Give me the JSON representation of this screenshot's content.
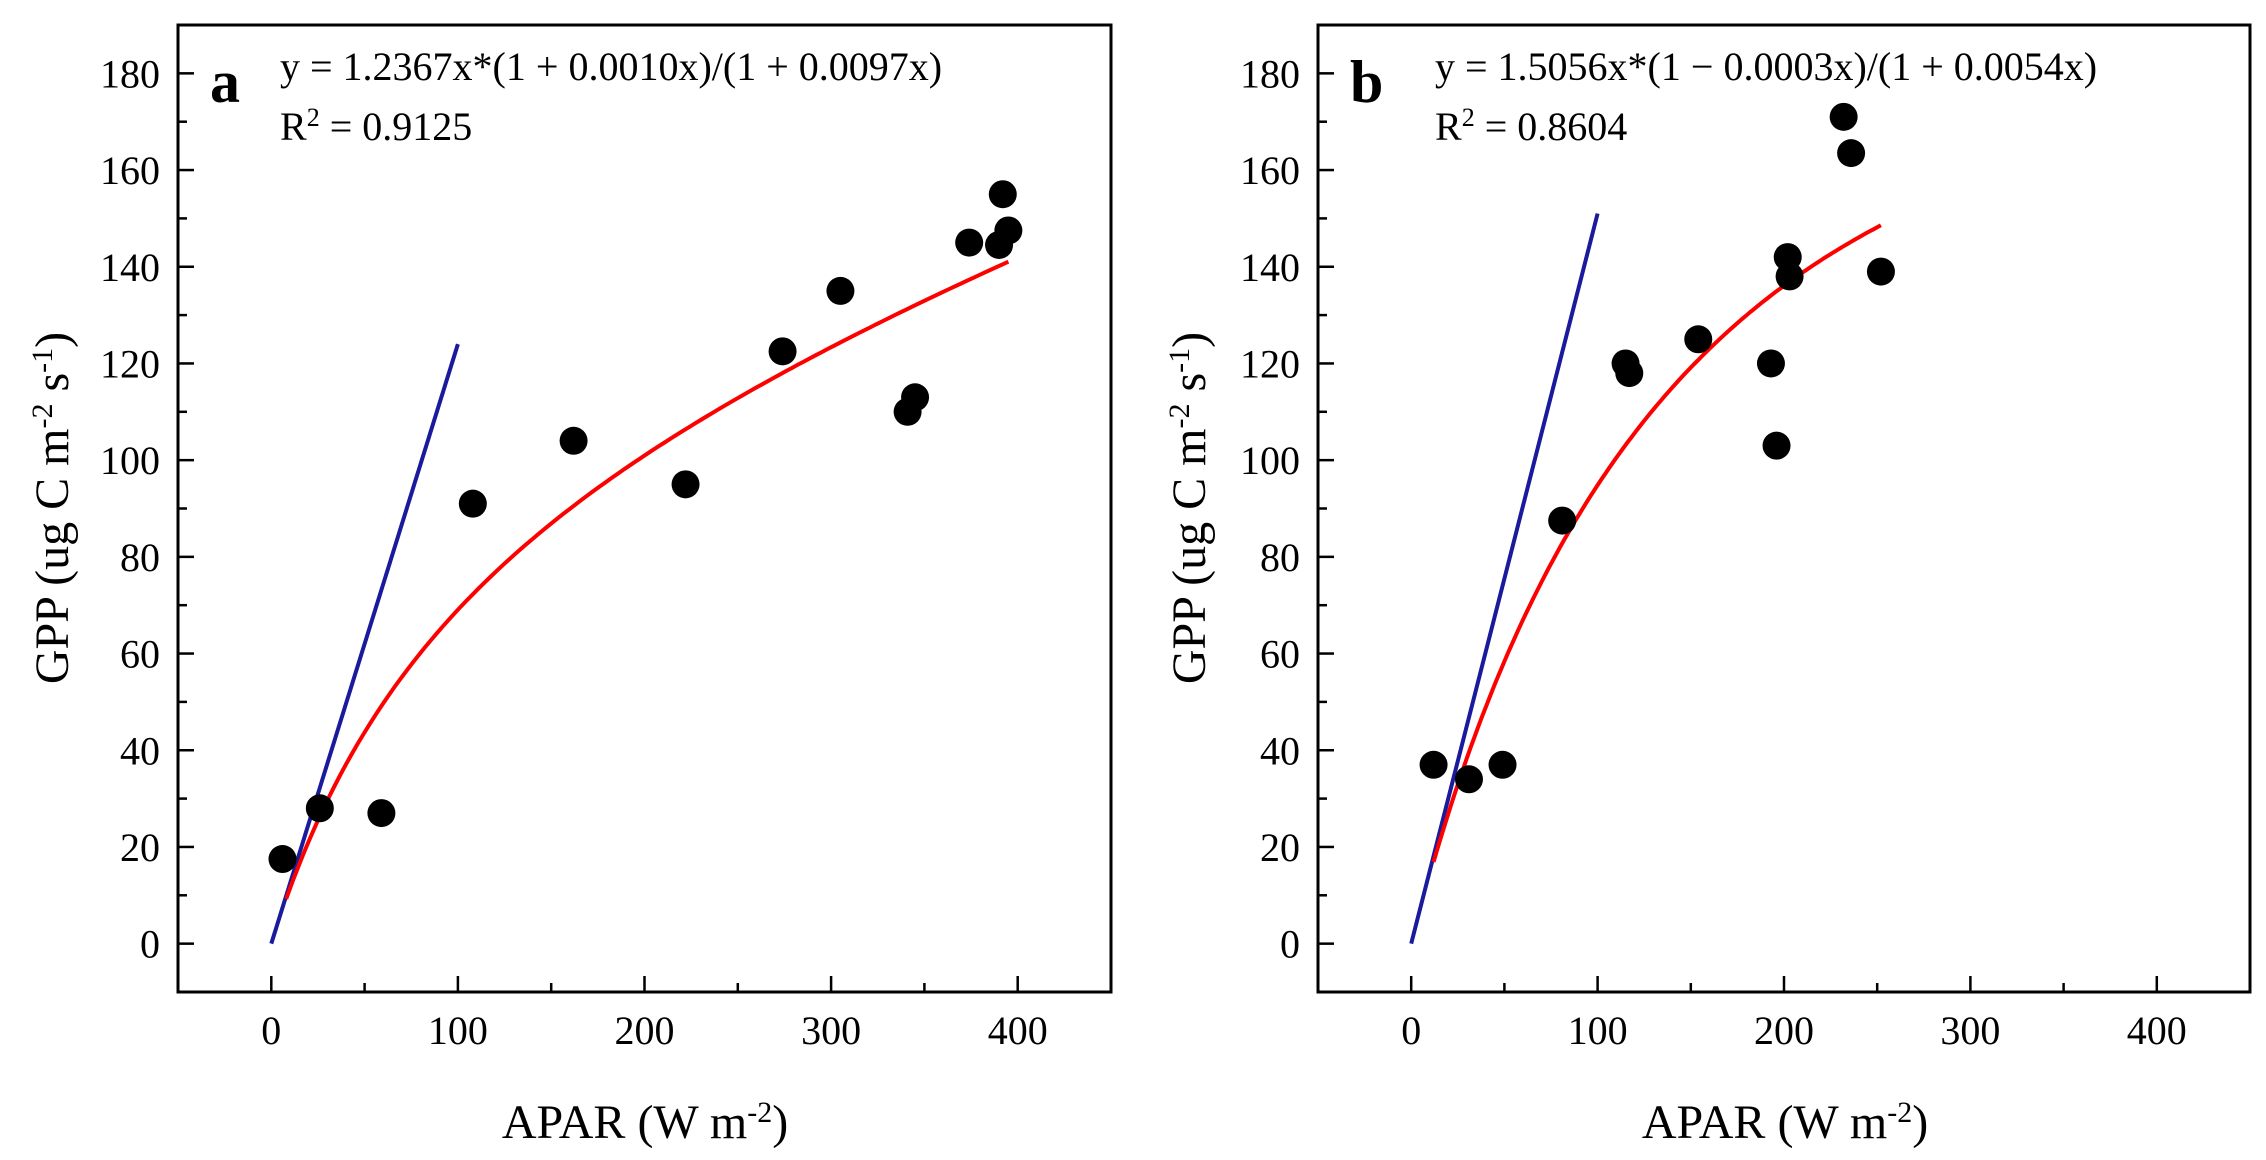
{
  "chart_data": [
    {
      "type": "scatter",
      "panel_label": "a",
      "equation": "y = 1.2367x*(1 + 0.0010x)/(1 + 0.0097x)",
      "r2_prefix": "R",
      "r2_sup": "2",
      "r2_value": " = 0.9125",
      "xlabel_main": "APAR (W m",
      "xlabel_sup": "-2",
      "xlabel_end": ")",
      "ylabel_main": "GPP (ug C m",
      "ylabel_sup1": "-2",
      "ylabel_mid": " s",
      "ylabel_sup2": "-1",
      "ylabel_end": ")",
      "xlim": [
        -50,
        450
      ],
      "ylim": [
        -10,
        190
      ],
      "xticks": [
        0,
        100,
        200,
        300,
        400
      ],
      "yticks": [
        0,
        20,
        40,
        60,
        80,
        100,
        120,
        140,
        160,
        180
      ],
      "points": [
        {
          "x": 6,
          "y": 17.5
        },
        {
          "x": 26,
          "y": 28
        },
        {
          "x": 59,
          "y": 27
        },
        {
          "x": 108,
          "y": 91
        },
        {
          "x": 162,
          "y": 104
        },
        {
          "x": 222,
          "y": 95
        },
        {
          "x": 274,
          "y": 122.5
        },
        {
          "x": 305,
          "y": 135
        },
        {
          "x": 341,
          "y": 110
        },
        {
          "x": 345,
          "y": 113
        },
        {
          "x": 374,
          "y": 145
        },
        {
          "x": 390,
          "y": 144.5
        },
        {
          "x": 392,
          "y": 155
        },
        {
          "x": 395,
          "y": 147.5
        }
      ],
      "fit": {
        "a": 1.2367,
        "b": 0.001,
        "c": 0.0097,
        "x_range": [
          8,
          395
        ],
        "color": "#ff0000"
      },
      "initial_slope_line": {
        "x": [
          0,
          100
        ],
        "y": [
          0,
          124
        ],
        "color": "#1a1a9c"
      }
    },
    {
      "type": "scatter",
      "panel_label": "b",
      "equation": "y = 1.5056x*(1 − 0.0003x)/(1 + 0.0054x)",
      "r2_prefix": "R",
      "r2_sup": "2",
      "r2_value": " = 0.8604",
      "xlabel_main": "APAR (W m",
      "xlabel_sup": "-2",
      "xlabel_end": ")",
      "ylabel_main": "GPP (ug C m",
      "ylabel_sup1": "-2",
      "ylabel_mid": " s",
      "ylabel_sup2": "-1",
      "ylabel_end": ")",
      "xlim": [
        -50,
        450
      ],
      "ylim": [
        -10,
        190
      ],
      "xticks": [
        0,
        100,
        200,
        300,
        400
      ],
      "yticks": [
        0,
        20,
        40,
        60,
        80,
        100,
        120,
        140,
        160,
        180
      ],
      "points": [
        {
          "x": 12,
          "y": 37
        },
        {
          "x": 31,
          "y": 34
        },
        {
          "x": 49,
          "y": 37
        },
        {
          "x": 81,
          "y": 87.5
        },
        {
          "x": 115,
          "y": 120
        },
        {
          "x": 117,
          "y": 118
        },
        {
          "x": 154,
          "y": 125
        },
        {
          "x": 193,
          "y": 120
        },
        {
          "x": 196,
          "y": 103
        },
        {
          "x": 202,
          "y": 142
        },
        {
          "x": 203,
          "y": 138
        },
        {
          "x": 232,
          "y": 171
        },
        {
          "x": 236,
          "y": 163.5
        },
        {
          "x": 252,
          "y": 139
        }
      ],
      "fit": {
        "a": 1.5056,
        "b": -0.0003,
        "c": 0.0054,
        "x_range": [
          12,
          252
        ],
        "color": "#ff0000"
      },
      "initial_slope_line": {
        "x": [
          0,
          100
        ],
        "y": [
          0,
          151
        ],
        "color": "#1a1a9c"
      }
    }
  ]
}
